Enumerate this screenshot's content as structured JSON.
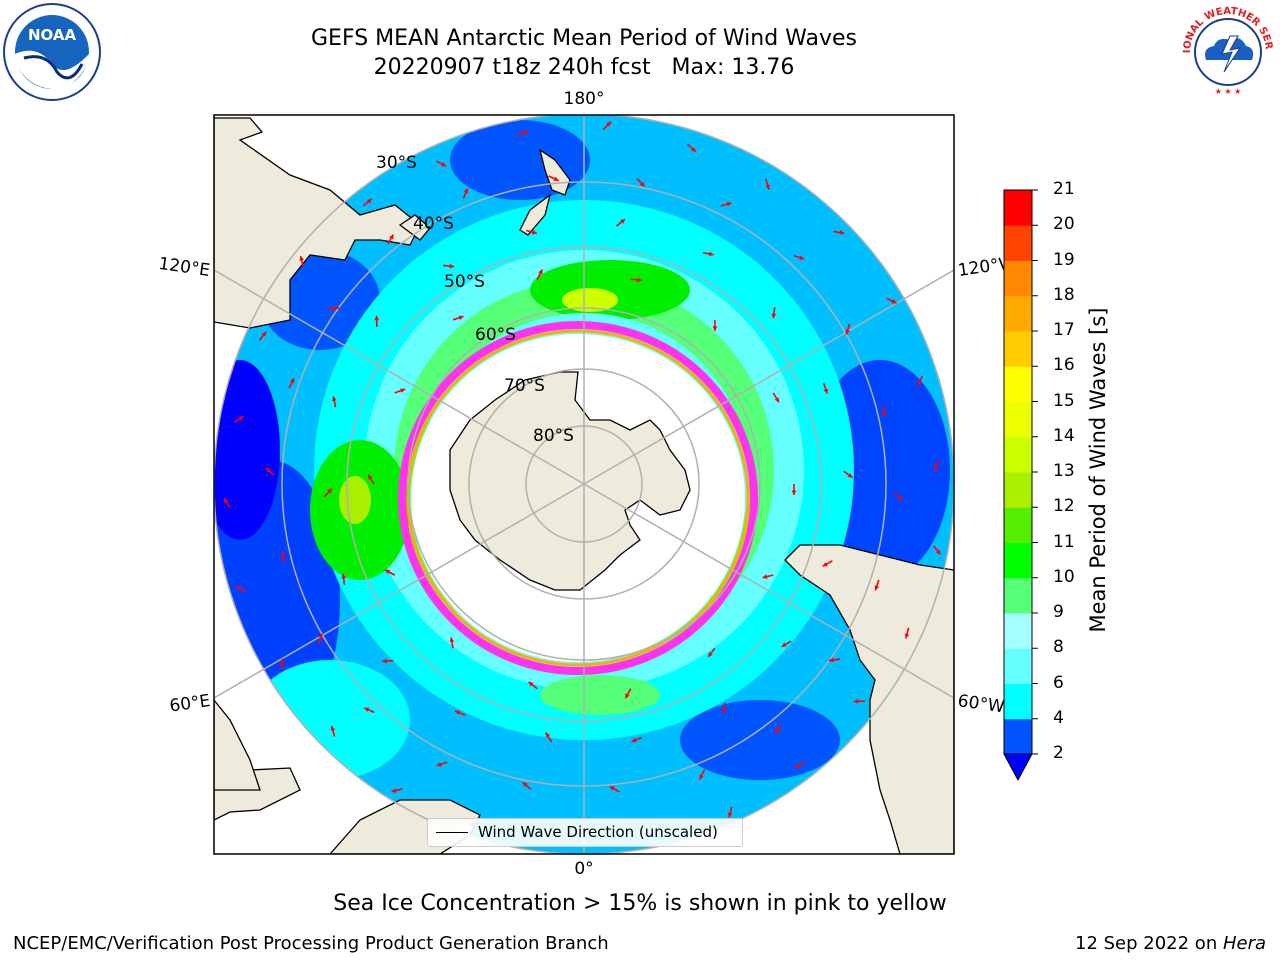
{
  "title": {
    "line1": "GEFS MEAN Antarctic Mean Period of Wind Waves",
    "line2": "20220907 t18z 240h fcst   Max: 13.76"
  },
  "map": {
    "lon_labels": {
      "top": "180°",
      "bottom": "0°",
      "upper_left": "120°E",
      "upper_right": "120°W",
      "lower_left": "60°E",
      "lower_right": "60°W"
    },
    "lat_labels": [
      "30°S",
      "40°S",
      "50°S",
      "60°S",
      "70°S",
      "80°S"
    ],
    "legend": "Wind Wave Direction (unscaled)",
    "colors": {
      "land": "#efebdc",
      "ice": "#ffffff",
      "arrow": "#ff0000",
      "grid": "#b0b0b0"
    }
  },
  "colorbar": {
    "label": "Mean Period of Wind Waves [s]",
    "ticks": [
      "2",
      "4",
      "6",
      "8",
      "9",
      "10",
      "11",
      "12",
      "13",
      "14",
      "15",
      "16",
      "17",
      "18",
      "19",
      "20",
      "21"
    ],
    "colors": [
      "#0055ff",
      "#00bfff",
      "#00ffff",
      "#66ffff",
      "#a6ffff",
      "#55ff77",
      "#00ff00",
      "#55ee00",
      "#aaee00",
      "#ccff00",
      "#eeff00",
      "#ffff00",
      "#ffcc00",
      "#ffaa00",
      "#ff8800",
      "#ff4400",
      "#ff0000"
    ],
    "extend_color": "#0000ff"
  },
  "sea_ice_note": "Sea Ice Concentration > 15% is shown in pink to yellow",
  "footer": {
    "left": "NCEP/EMC/Verification Post Processing Product Generation Branch",
    "right_prefix": "12 Sep 2022 on ",
    "right_italic": "Hera"
  },
  "logos": {
    "left": "NOAA",
    "right": "NATIONAL WEATHER SERVICE"
  }
}
